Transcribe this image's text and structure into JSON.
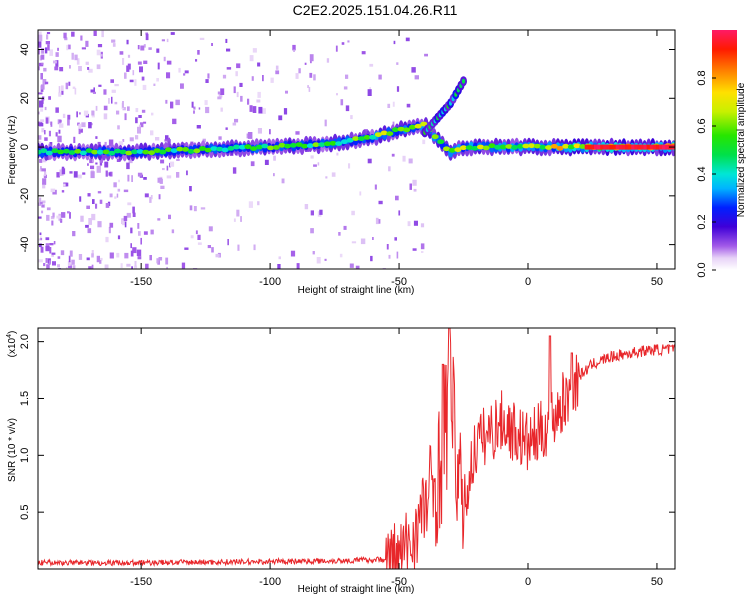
{
  "title": "C2E2.2025.151.04.26.R11",
  "chart_data": [
    {
      "type": "heatmap",
      "xlabel": "Height of straight line (km)",
      "ylabel": "Frequency (Hz)",
      "xlim": [
        -190,
        57
      ],
      "ylim": [
        -50,
        48
      ],
      "xticks": [
        -150,
        -100,
        -50,
        0,
        50
      ],
      "yticks": [
        -40,
        -20,
        0,
        20,
        40
      ],
      "colorbar": {
        "label": "Normalized spectral amplitude",
        "range": [
          0,
          1
        ],
        "ticks": [
          "0.0",
          "0.2",
          "0.4",
          "0.6",
          "0.8"
        ]
      },
      "ridge": {
        "x": [
          -190,
          -150,
          -100,
          -80,
          -60,
          -50,
          -45,
          -40,
          -35,
          -30,
          -25,
          -20,
          -10,
          0,
          10,
          20,
          30,
          40,
          57
        ],
        "y": [
          -2,
          -2,
          0,
          1,
          4,
          7,
          8,
          9,
          3,
          -2,
          0,
          0,
          0,
          0,
          0,
          0,
          0,
          0,
          0
        ]
      },
      "branch": {
        "x": [
          -40,
          -35,
          -30,
          -25
        ],
        "y": [
          6,
          12,
          18,
          27
        ]
      }
    },
    {
      "type": "line",
      "xlabel": "Height of straight line (km)",
      "ylabel": "SNR (10 * v/v)",
      "multiplier": "(x10",
      "multiplier_exp": "4",
      "xlim": [
        -190,
        57
      ],
      "ylim": [
        0,
        2.12
      ],
      "xticks": [
        -150,
        -100,
        -50,
        0,
        50
      ],
      "yticks": [
        0.5,
        1.0,
        1.5,
        2.0
      ],
      "ytick_labels": [
        "0.5",
        "1.0",
        "1.5",
        "2.0"
      ],
      "color": "#e8262a",
      "series": [
        {
          "x": [
            -190,
            -150,
            -100,
            -70,
            -55,
            -50,
            -45,
            -40,
            -35,
            -32,
            -30,
            -28,
            -25,
            -22,
            -20,
            -15,
            -10,
            -5,
            0,
            5,
            10,
            15,
            20,
            25,
            30,
            35,
            40,
            45,
            50,
            57
          ],
          "y": [
            0.05,
            0.05,
            0.06,
            0.07,
            0.08,
            0.1,
            0.25,
            0.55,
            0.8,
            1.2,
            1.6,
            1.0,
            0.5,
            0.9,
            1.1,
            1.2,
            1.3,
            1.2,
            1.1,
            1.2,
            1.35,
            1.5,
            1.7,
            1.8,
            1.85,
            1.88,
            1.9,
            1.92,
            1.93,
            1.93
          ]
        }
      ],
      "peaks": [
        {
          "x": -30.5,
          "y": 2.12
        },
        {
          "x": -33,
          "y": 1.8
        },
        {
          "x": 8.5,
          "y": 2.05
        },
        {
          "x": 17,
          "y": 1.9
        }
      ]
    }
  ]
}
